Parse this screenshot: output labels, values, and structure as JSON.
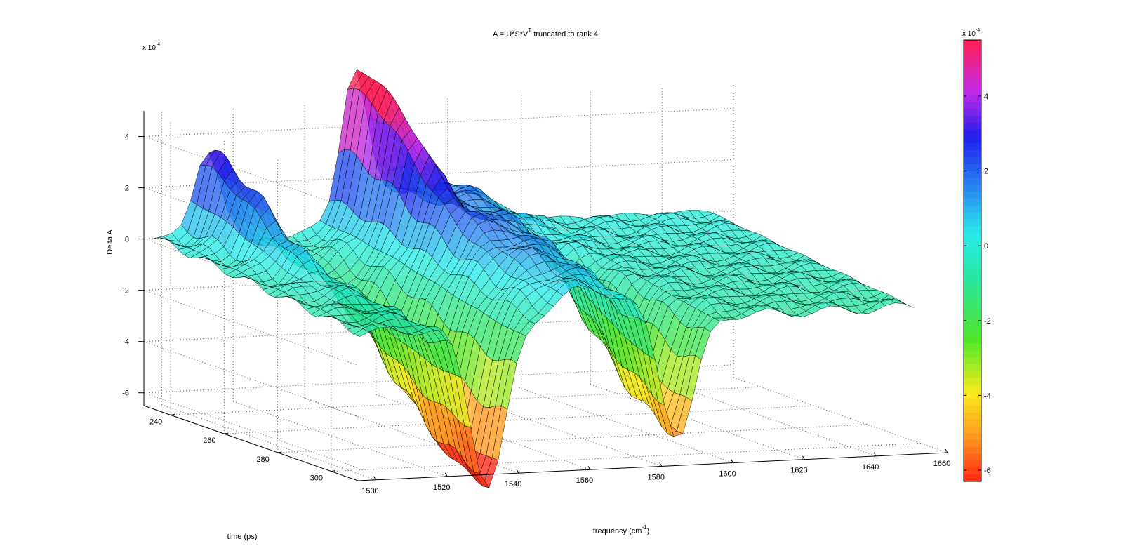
{
  "chart_data": {
    "type": "surface",
    "title": "A = U*S*V^T truncated to rank 4",
    "title_parts": {
      "pre": "A = U*S*V",
      "sup": "T",
      "post": " truncated to rank 4"
    },
    "xlabel": "frequency (cm-1)",
    "xlabel_parts": {
      "pre": "frequency (cm",
      "sup": "-1",
      "post": ")"
    },
    "ylabel": "time (ps)",
    "zlabel": "Delta A",
    "xlim": [
      1495,
      1660
    ],
    "ylim": [
      230,
      310
    ],
    "zlim": [
      -0.00065,
      0.0005
    ],
    "x_ticks": [
      "1500",
      "1520",
      "1540",
      "1560",
      "1580",
      "1600",
      "1620",
      "1640",
      "1660"
    ],
    "y_ticks": [
      "240",
      "260",
      "280",
      "300"
    ],
    "z_ticks": [
      "4",
      "2",
      "0",
      "-2",
      "-4",
      "-6"
    ],
    "z_exponent": "x 10",
    "z_exponent_power": "-4",
    "grid": true,
    "colormap": "hsv",
    "colorbar": {
      "ticks": [
        "4",
        "2",
        "0",
        "-2",
        "-4",
        "-6"
      ],
      "exponent": "x 10",
      "exponent_power": "-4",
      "range": [
        -0.00063,
        0.00055
      ]
    },
    "features": [
      {
        "kind": "peak",
        "x": 1512,
        "y": 232,
        "value": 0.00033
      },
      {
        "kind": "peak",
        "x": 1553,
        "y": 232,
        "value": 0.00053
      },
      {
        "kind": "trough",
        "x": 1533,
        "y": 305,
        "value": -0.00062
      },
      {
        "kind": "trough",
        "x": 1586,
        "y": 305,
        "value": -0.00052
      },
      {
        "kind": "ridge",
        "x": 1560,
        "y": 270,
        "value": 0.0002
      },
      {
        "kind": "ridge",
        "x": 1582,
        "y": 250,
        "value": 0.00018
      }
    ]
  }
}
